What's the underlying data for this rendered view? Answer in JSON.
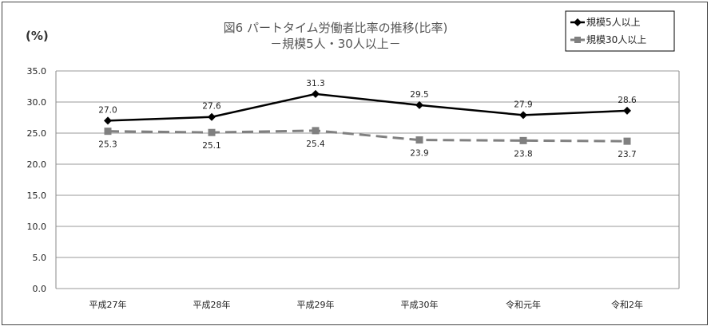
{
  "chart_data": {
    "type": "line",
    "title": "図6 パートタイム労働者比率の推移(比率)",
    "subtitle": "－規模5人・30人以上－",
    "ylabel": "(%)",
    "xlabel": "",
    "ylim": [
      0,
      35
    ],
    "yticks": [
      "0.0",
      "5.0",
      "10.0",
      "15.0",
      "20.0",
      "25.0",
      "30.0",
      "35.0"
    ],
    "categories": [
      "平成27年",
      "平成28年",
      "平成29年",
      "平成30年",
      "令和元年",
      "令和2年"
    ],
    "grid": true,
    "legend_position": "top-right",
    "series": [
      {
        "name": "規模5人以上",
        "values": [
          27.0,
          27.6,
          31.3,
          29.5,
          27.9,
          28.6
        ],
        "labels": [
          "27.0",
          "27.6",
          "31.3",
          "29.5",
          "27.9",
          "28.6"
        ],
        "color": "#000000",
        "marker": "diamond",
        "dash": "solid"
      },
      {
        "name": "規模30人以上",
        "values": [
          25.3,
          25.1,
          25.4,
          23.9,
          23.8,
          23.7
        ],
        "labels": [
          "25.3",
          "25.1",
          "25.4",
          "23.9",
          "23.8",
          "23.7"
        ],
        "color": "#808080",
        "marker": "square",
        "dash": "dashed"
      }
    ]
  }
}
